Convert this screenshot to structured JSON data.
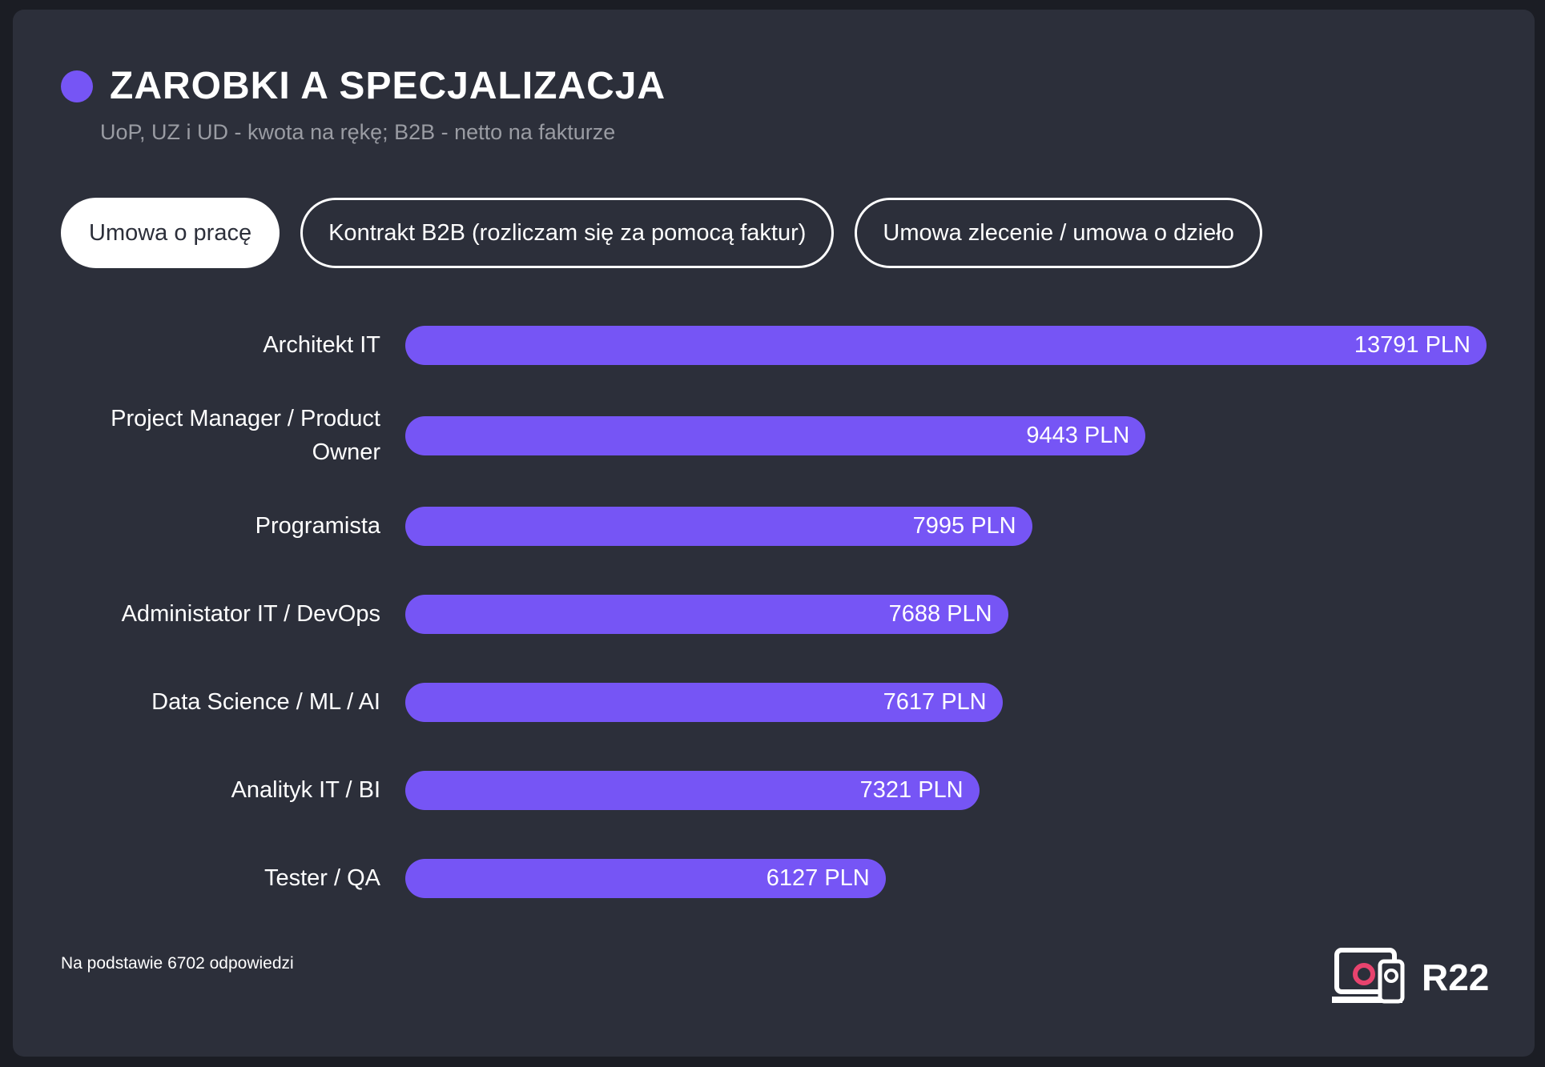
{
  "chart_data": {
    "type": "bar",
    "orientation": "horizontal",
    "title": "ZAROBKI A SPECJALIZACJA",
    "subtitle": "UoP, UZ i UD - kwota na rękę; B2B - netto na fakturze",
    "categories": [
      "Architekt IT",
      "Project Manager / Product Owner",
      "Programista",
      "Administator IT / DevOps",
      "Data Science / ML / AI",
      "Analityk IT / BI",
      "Tester / QA"
    ],
    "values": [
      13791,
      9443,
      7995,
      7688,
      7617,
      7321,
      6127
    ],
    "value_labels": [
      "13791 PLN",
      "9443 PLN",
      "7995 PLN",
      "7688 PLN",
      "7617 PLN",
      "7321 PLN",
      "6127 PLN"
    ],
    "color": "#7655f5"
  },
  "tabs": [
    "Umowa o pracę",
    "Kontrakt B2B (rozliczam się za pomocą faktur)",
    "Umowa zlecenie / umowa o dzieło"
  ],
  "active_tab": 0,
  "footnote": "Na podstawie 6702 odpowiedzi",
  "logo": "R22"
}
